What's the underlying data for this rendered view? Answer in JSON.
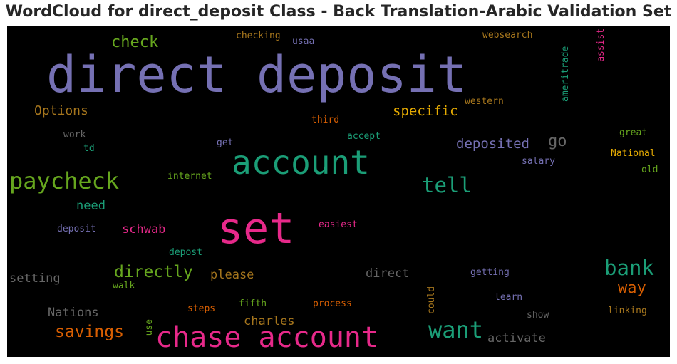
{
  "chart_data": {
    "type": "wordcloud",
    "title": "WordCloud for direct_deposit Class - Back Translation-Arabic Validation Set",
    "background": "#000000",
    "words": [
      {
        "text": "direct deposit",
        "color": "#7570b3"
      },
      {
        "text": "account",
        "color": "#1b9e77"
      },
      {
        "text": "set",
        "color": "#e7298a"
      },
      {
        "text": "chase account",
        "color": "#e7298a"
      },
      {
        "text": "paycheck",
        "color": "#66a61e"
      },
      {
        "text": "tell",
        "color": "#1b9e77"
      },
      {
        "text": "want",
        "color": "#1b9e77"
      },
      {
        "text": "bank",
        "color": "#1b9e77"
      },
      {
        "text": "directly",
        "color": "#66a61e"
      },
      {
        "text": "savings",
        "color": "#d95f02"
      },
      {
        "text": "check",
        "color": "#66a61e"
      },
      {
        "text": "specific",
        "color": "#e6ab02"
      },
      {
        "text": "way",
        "color": "#d95f02"
      },
      {
        "text": "Options",
        "color": "#a6761d"
      },
      {
        "text": "deposited",
        "color": "#7570b3"
      },
      {
        "text": "go",
        "color": "#666666"
      },
      {
        "text": "need",
        "color": "#1b9e77"
      },
      {
        "text": "schwab",
        "color": "#e7298a"
      },
      {
        "text": "please",
        "color": "#a6761d"
      },
      {
        "text": "direct",
        "color": "#666666"
      },
      {
        "text": "setting",
        "color": "#666666"
      },
      {
        "text": "Nations",
        "color": "#666666"
      },
      {
        "text": "charles",
        "color": "#a6761d"
      },
      {
        "text": "activate",
        "color": "#666666"
      },
      {
        "text": "checking",
        "color": "#a6761d"
      },
      {
        "text": "usaa",
        "color": "#7570b3"
      },
      {
        "text": "websearch",
        "color": "#a6761d"
      },
      {
        "text": "assist",
        "color": "#e7298a"
      },
      {
        "text": "ameritrade",
        "color": "#1b9e77"
      },
      {
        "text": "western",
        "color": "#a6761d"
      },
      {
        "text": "third",
        "color": "#d95f02"
      },
      {
        "text": "work",
        "color": "#666666"
      },
      {
        "text": "accept",
        "color": "#1b9e77"
      },
      {
        "text": "great",
        "color": "#66a61e"
      },
      {
        "text": "td",
        "color": "#1b9e77"
      },
      {
        "text": "get",
        "color": "#7570b3"
      },
      {
        "text": "National",
        "color": "#e6ab02"
      },
      {
        "text": "internet",
        "color": "#66a61e"
      },
      {
        "text": "salary",
        "color": "#7570b3"
      },
      {
        "text": "old",
        "color": "#66a61e"
      },
      {
        "text": "deposit",
        "color": "#7570b3"
      },
      {
        "text": "easiest",
        "color": "#e7298a"
      },
      {
        "text": "depost",
        "color": "#1b9e77"
      },
      {
        "text": "getting",
        "color": "#7570b3"
      },
      {
        "text": "walk",
        "color": "#66a61e"
      },
      {
        "text": "learn",
        "color": "#7570b3"
      },
      {
        "text": "fifth",
        "color": "#66a61e"
      },
      {
        "text": "process",
        "color": "#d95f02"
      },
      {
        "text": "steps",
        "color": "#d95f02"
      },
      {
        "text": "could",
        "color": "#a6761d"
      },
      {
        "text": "linking",
        "color": "#a6761d"
      },
      {
        "text": "show",
        "color": "#666666"
      },
      {
        "text": "use",
        "color": "#66a61e"
      }
    ]
  }
}
